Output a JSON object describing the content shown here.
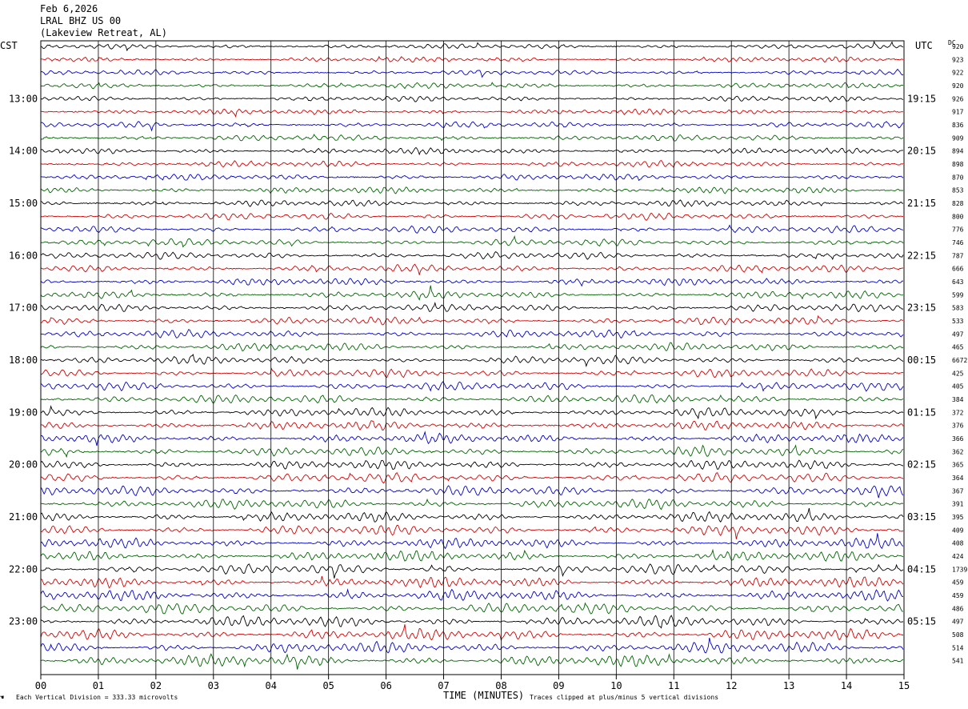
{
  "header": {
    "date": "Feb 6,2026",
    "station": "LRAL BHZ US 00",
    "location": "(Lakeview Retreat, AL)",
    "left_tz": "CST",
    "right_tz": "UTC",
    "dc_label": "DC"
  },
  "footer": {
    "scale_note": "Each Vertical Division =  333.33 microvolts",
    "xlabel": "TIME (MINUTES)",
    "clip_note": "Traces clipped at plus/minus 5 vertical divisions"
  },
  "chart_data": {
    "type": "line",
    "title": "LRAL BHZ US 00",
    "xlabel": "TIME (MINUTES)",
    "ylabel": "",
    "x_ticks": [
      "00",
      "01",
      "02",
      "03",
      "04",
      "05",
      "06",
      "07",
      "08",
      "09",
      "10",
      "11",
      "12",
      "13",
      "14",
      "15"
    ],
    "xlim": [
      0,
      15
    ],
    "grid": true,
    "left_hour_labels": [
      "13:00",
      "14:00",
      "15:00",
      "16:00",
      "17:00",
      "18:00",
      "19:00",
      "20:00",
      "21:00",
      "22:00",
      "23:00"
    ],
    "right_hour_labels": [
      "19:15",
      "20:15",
      "21:15",
      "22:15",
      "23:15",
      "00:15",
      "01:15",
      "02:15",
      "03:15",
      "04:15",
      "05:15"
    ],
    "trace_colors": [
      "#000000",
      "#d40000",
      "#0000c8",
      "#006400"
    ],
    "dc_offsets": [
      "920",
      "923",
      "922",
      "920",
      "926",
      "917",
      "836",
      "909",
      "894",
      "898",
      "870",
      "853",
      "828",
      "800",
      "776",
      "746",
      "787",
      "666",
      "643",
      "599",
      "583",
      "533",
      "497",
      "465",
      "6672",
      "425",
      "405",
      "384",
      "372",
      "376",
      "366",
      "362",
      "365",
      "364",
      "367",
      "391",
      "395",
      "409",
      "408",
      "424",
      "1739",
      "459",
      "459",
      "486",
      "497",
      "508",
      "514",
      "541"
    ]
  }
}
